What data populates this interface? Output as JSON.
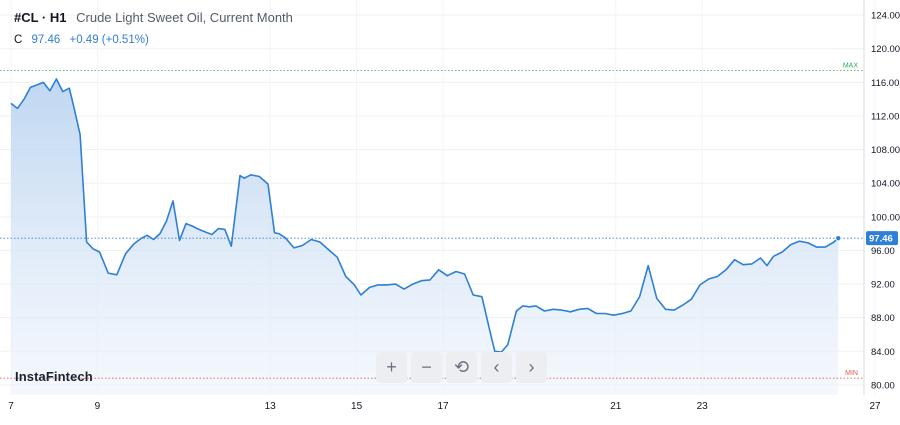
{
  "legend": {
    "symbol": "#CL · H1",
    "instrument": "Crude Light Sweet Oil, Current Month",
    "ohlc_label": "C",
    "last": "97.46",
    "change": "+0.49 (+0.51%)"
  },
  "brand": "InstaFintech",
  "toolbar": [
    {
      "name": "zoom-in-button",
      "icon": "plus-icon",
      "glyph": "+"
    },
    {
      "name": "zoom-out-button",
      "icon": "minus-icon",
      "glyph": "−"
    },
    {
      "name": "reset-button",
      "icon": "reset-icon",
      "glyph": "⟲"
    },
    {
      "name": "scroll-left-button",
      "icon": "chevron-left-icon",
      "glyph": "‹"
    },
    {
      "name": "scroll-right-button",
      "icon": "chevron-right-icon",
      "glyph": "›"
    }
  ],
  "colors": {
    "line": "#2f7fd6",
    "fill_top": "#b9d3f0",
    "fill_bottom": "#eef4fb",
    "max": "#2faa60",
    "min": "#e05a5a"
  },
  "chart_data": {
    "type": "area",
    "yticks": [
      "124.00",
      "120.00",
      "116.00",
      "112.00",
      "108.00",
      "104.00",
      "100.00",
      "96.00",
      "92.00",
      "88.00",
      "84.00",
      "80.00"
    ],
    "xticks": [
      "7",
      "9",
      "13",
      "15",
      "17",
      "21",
      "23",
      "27"
    ],
    "ylim": [
      78.8,
      125.8
    ],
    "xlim": [
      7,
      27
    ],
    "max_label": "MAX",
    "max_value": 117.4,
    "min_label": "MIN",
    "min_value": 80.8,
    "last_value": 97.46,
    "last_label": "97.46",
    "x": [
      7.0,
      7.15,
      7.3,
      7.45,
      7.6,
      7.75,
      7.9,
      8.05,
      8.2,
      8.35,
      8.45,
      8.6,
      8.75,
      8.9,
      9.05,
      9.25,
      9.45,
      9.65,
      9.85,
      10.0,
      10.15,
      10.3,
      10.45,
      10.6,
      10.75,
      10.9,
      11.05,
      11.2,
      11.35,
      11.5,
      11.65,
      11.8,
      11.95,
      12.1,
      12.3,
      12.4,
      12.55,
      12.75,
      12.95,
      13.1,
      13.2,
      13.35,
      13.55,
      13.75,
      13.95,
      14.15,
      14.35,
      14.55,
      14.75,
      14.95,
      15.1,
      15.3,
      15.5,
      15.7,
      15.9,
      16.1,
      16.3,
      16.5,
      16.7,
      16.9,
      17.1,
      17.3,
      17.5,
      17.7,
      17.9,
      18.1,
      18.2,
      18.35,
      18.5,
      18.7,
      18.85,
      19.0,
      19.15,
      19.35,
      19.55,
      19.75,
      19.95,
      20.15,
      20.35,
      20.55,
      20.75,
      20.95,
      21.15,
      21.35,
      21.55,
      21.75,
      21.95,
      22.15,
      22.35,
      22.55,
      22.75,
      22.95,
      23.15,
      23.35,
      23.55,
      23.75,
      23.95,
      24.15,
      24.35,
      24.5,
      24.65,
      24.85,
      25.05,
      25.25,
      25.45,
      25.65,
      25.85,
      26.05,
      26.15
    ],
    "y": [
      113.5,
      112.9,
      114.0,
      115.4,
      115.7,
      116.0,
      115.0,
      116.4,
      114.9,
      115.3,
      113.2,
      109.8,
      97.0,
      96.2,
      95.8,
      93.3,
      93.1,
      95.6,
      96.8,
      97.4,
      97.8,
      97.3,
      98.0,
      99.5,
      101.9,
      97.2,
      99.2,
      98.9,
      98.5,
      98.2,
      97.9,
      98.6,
      98.5,
      96.5,
      104.9,
      104.6,
      105.0,
      104.8,
      103.9,
      98.1,
      98.0,
      97.5,
      96.3,
      96.6,
      97.3,
      97.0,
      96.1,
      95.2,
      92.9,
      91.9,
      90.7,
      91.6,
      91.9,
      91.9,
      92.0,
      91.4,
      92.0,
      92.4,
      92.5,
      93.7,
      93.0,
      93.5,
      93.2,
      90.7,
      90.5,
      86.1,
      84.0,
      83.9,
      84.8,
      88.8,
      89.4,
      89.3,
      89.4,
      88.8,
      89.0,
      88.9,
      88.7,
      89.0,
      89.1,
      88.5,
      88.5,
      88.3,
      88.5,
      88.8,
      90.5,
      94.2,
      90.3,
      89.0,
      88.9,
      89.5,
      90.2,
      91.9,
      92.6,
      92.9,
      93.7,
      94.9,
      94.3,
      94.4,
      95.1,
      94.2,
      95.3,
      95.8,
      96.7,
      97.1,
      96.9,
      96.4,
      96.4,
      97.0,
      97.46
    ]
  }
}
